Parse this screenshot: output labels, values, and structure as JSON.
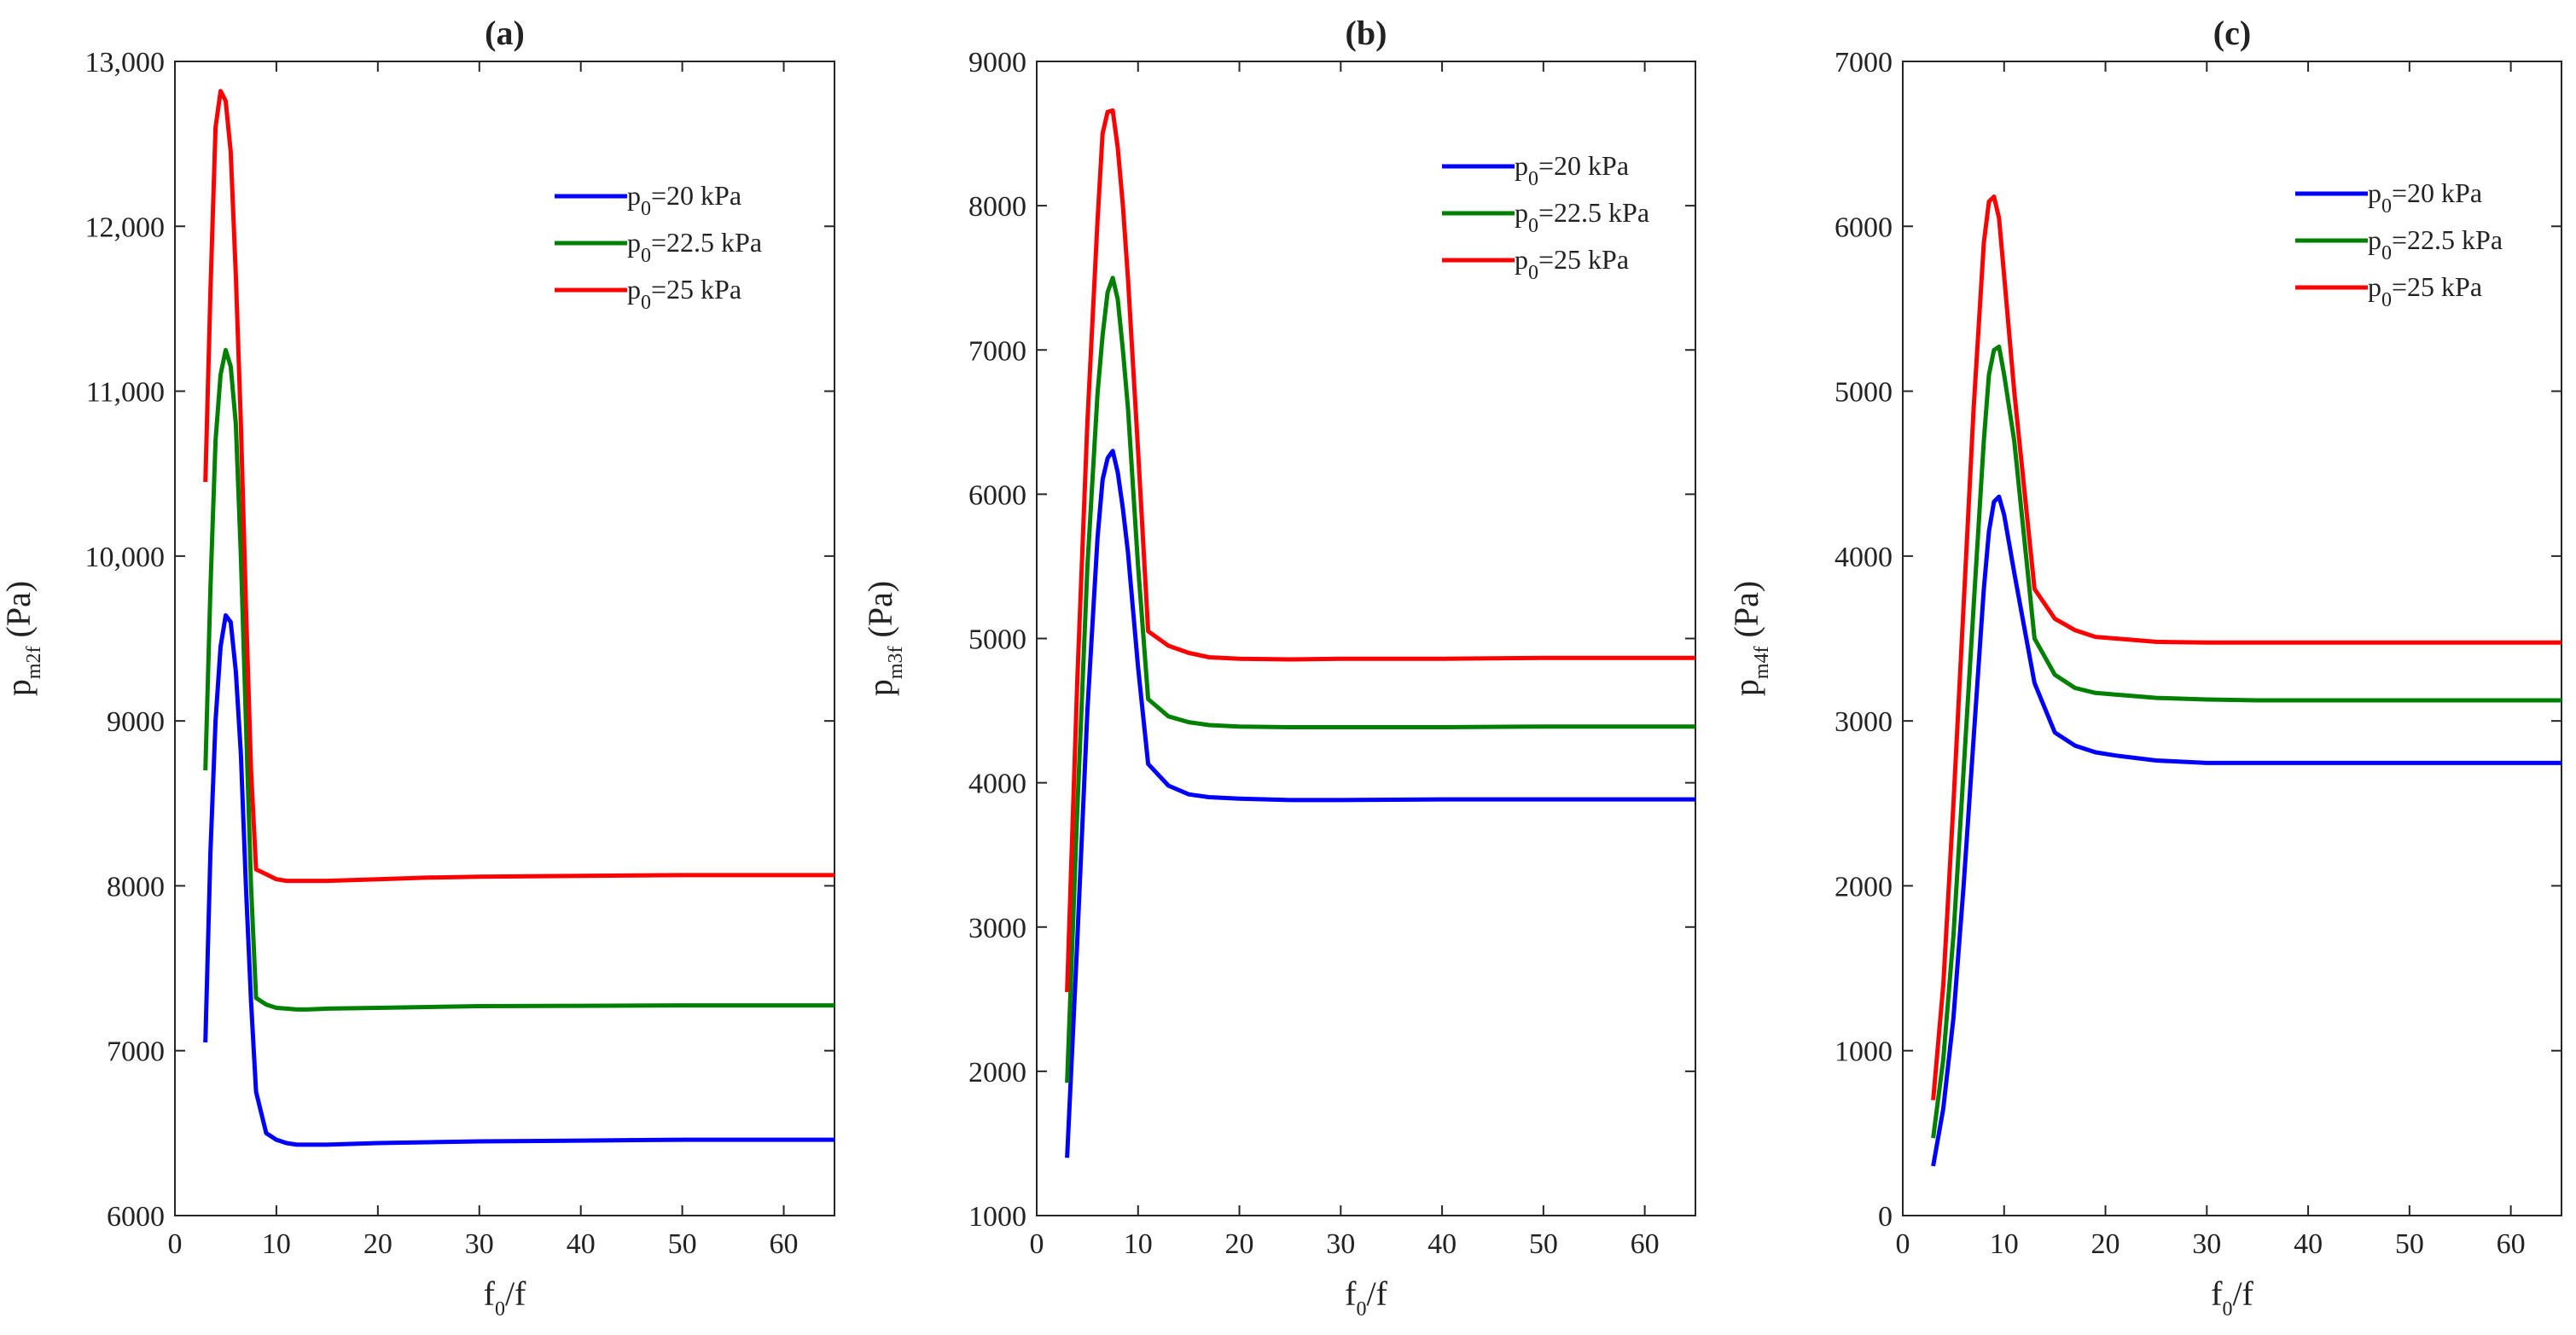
{
  "chart_data": [
    {
      "type": "line",
      "title": "(a)",
      "xlabel": {
        "base": "f",
        "sub": "0",
        "rest": "/f"
      },
      "ylabel": {
        "base": "p",
        "sub": "m2f",
        "rest": " (Pa)"
      },
      "xlim": [
        0,
        65
      ],
      "ylim": [
        6000,
        13000
      ],
      "xticks": [
        0,
        10,
        20,
        30,
        40,
        50,
        60
      ],
      "xtick_labels": [
        "0",
        "10",
        "20",
        "30",
        "40",
        "50",
        "60"
      ],
      "yticks": [
        6000,
        7000,
        8000,
        9000,
        10000,
        11000,
        12000,
        13000
      ],
      "ytick_labels": [
        "6000",
        "7000",
        "8000",
        "9000",
        "10,000",
        "11,000",
        "12,000",
        "13,000"
      ],
      "legend_position": "top-right",
      "series": [
        {
          "name": "p0=20 kPa",
          "legend": {
            "base": "p",
            "sub": "0",
            "rest": "=20 kPa"
          },
          "color": "#0000ff",
          "x": [
            3,
            3.5,
            4,
            4.5,
            5,
            5.5,
            6,
            6.5,
            7,
            7.5,
            8,
            9,
            10,
            11,
            12,
            13,
            15,
            20,
            25,
            30,
            40,
            50,
            65
          ],
          "y": [
            7050,
            8200,
            9000,
            9450,
            9640,
            9600,
            9300,
            8800,
            8000,
            7300,
            6750,
            6500,
            6460,
            6440,
            6430,
            6430,
            6430,
            6440,
            6445,
            6450,
            6455,
            6460,
            6460
          ]
        },
        {
          "name": "p0=22.5 kPa",
          "legend": {
            "base": "p",
            "sub": "0",
            "rest": "=22.5 kPa"
          },
          "color": "#008000",
          "x": [
            3,
            3.5,
            4,
            4.5,
            5,
            5.5,
            6,
            6.5,
            7,
            7.5,
            8,
            9,
            10,
            11,
            12,
            13,
            15,
            20,
            25,
            30,
            40,
            50,
            65
          ],
          "y": [
            8700,
            9800,
            10700,
            11100,
            11250,
            11150,
            10800,
            10000,
            9000,
            8000,
            7320,
            7280,
            7260,
            7255,
            7250,
            7250,
            7255,
            7260,
            7265,
            7270,
            7272,
            7275,
            7275
          ]
        },
        {
          "name": "p0=25 kPa",
          "legend": {
            "base": "p",
            "sub": "0",
            "rest": "=25 kPa"
          },
          "color": "#ff0000",
          "x": [
            3,
            3.5,
            4,
            4.5,
            5,
            5.5,
            6,
            6.5,
            7,
            7.5,
            8,
            9,
            10,
            11,
            12,
            13,
            15,
            20,
            25,
            30,
            40,
            50,
            65
          ],
          "y": [
            10450,
            11600,
            12600,
            12820,
            12760,
            12450,
            11700,
            10800,
            9700,
            8700,
            8100,
            8070,
            8040,
            8030,
            8030,
            8030,
            8030,
            8040,
            8050,
            8055,
            8060,
            8065,
            8065
          ]
        }
      ]
    },
    {
      "type": "line",
      "title": "(b)",
      "xlabel": {
        "base": "f",
        "sub": "0",
        "rest": "/f"
      },
      "ylabel": {
        "base": "p",
        "sub": "m3f",
        "rest": " (Pa)"
      },
      "xlim": [
        0,
        65
      ],
      "ylim": [
        1000,
        9000
      ],
      "xticks": [
        0,
        10,
        20,
        30,
        40,
        50,
        60
      ],
      "xtick_labels": [
        "0",
        "10",
        "20",
        "30",
        "40",
        "50",
        "60"
      ],
      "yticks": [
        1000,
        2000,
        3000,
        4000,
        5000,
        6000,
        7000,
        8000,
        9000
      ],
      "ytick_labels": [
        "1000",
        "2000",
        "3000",
        "4000",
        "5000",
        "6000",
        "7000",
        "8000",
        "9000"
      ],
      "legend_position": "top-right",
      "series": [
        {
          "name": "p0=20 kPa",
          "legend": {
            "base": "p",
            "sub": "0",
            "rest": "=20 kPa"
          },
          "color": "#0000ff",
          "x": [
            3,
            4,
            5,
            6,
            6.5,
            7,
            7.5,
            8,
            8.5,
            9,
            10,
            11,
            13,
            15,
            17,
            20,
            25,
            30,
            40,
            50,
            65
          ],
          "y": [
            1400,
            2900,
            4500,
            5700,
            6100,
            6250,
            6300,
            6150,
            5900,
            5600,
            4800,
            4130,
            3980,
            3920,
            3900,
            3890,
            3880,
            3880,
            3885,
            3885,
            3885
          ]
        },
        {
          "name": "p0=22.5 kPa",
          "legend": {
            "base": "p",
            "sub": "0",
            "rest": "=22.5 kPa"
          },
          "color": "#008000",
          "x": [
            3,
            4,
            5,
            6,
            6.5,
            7,
            7.5,
            8,
            8.5,
            9,
            10,
            11,
            13,
            15,
            17,
            20,
            25,
            30,
            40,
            50,
            65
          ],
          "y": [
            1920,
            3800,
            5500,
            6700,
            7100,
            7400,
            7500,
            7350,
            7000,
            6600,
            5500,
            4580,
            4460,
            4420,
            4400,
            4390,
            4385,
            4385,
            4385,
            4390,
            4390
          ]
        },
        {
          "name": "p0=25 kPa",
          "legend": {
            "base": "p",
            "sub": "0",
            "rest": "=25 kPa"
          },
          "color": "#ff0000",
          "x": [
            3,
            4,
            5,
            6,
            6.5,
            7,
            7.5,
            8,
            8.5,
            9,
            10,
            11,
            13,
            15,
            17,
            20,
            25,
            30,
            40,
            50,
            65
          ],
          "y": [
            2550,
            4700,
            6500,
            7900,
            8500,
            8650,
            8660,
            8400,
            8000,
            7500,
            6300,
            5050,
            4950,
            4900,
            4870,
            4860,
            4855,
            4860,
            4860,
            4865,
            4865
          ]
        }
      ]
    },
    {
      "type": "line",
      "title": "(c)",
      "xlabel": {
        "base": "f",
        "sub": "0",
        "rest": "/f"
      },
      "ylabel": {
        "base": "p",
        "sub": "m4f",
        "rest": " (Pa)"
      },
      "xlim": [
        0,
        65
      ],
      "ylim": [
        0,
        7000
      ],
      "xticks": [
        0,
        10,
        20,
        30,
        40,
        50,
        60
      ],
      "xtick_labels": [
        "0",
        "10",
        "20",
        "30",
        "40",
        "50",
        "60"
      ],
      "yticks": [
        0,
        1000,
        2000,
        3000,
        4000,
        5000,
        6000,
        7000
      ],
      "ytick_labels": [
        "0",
        "1000",
        "2000",
        "3000",
        "4000",
        "5000",
        "6000",
        "7000"
      ],
      "legend_position": "top-right",
      "series": [
        {
          "name": "p0=20 kPa",
          "legend": {
            "base": "p",
            "sub": "0",
            "rest": "=20 kPa"
          },
          "color": "#0000ff",
          "x": [
            3,
            4,
            5,
            6,
            7,
            8,
            8.5,
            9,
            9.5,
            10,
            11,
            13,
            15,
            17,
            19,
            21,
            25,
            30,
            35,
            40,
            50,
            65
          ],
          "y": [
            300,
            650,
            1200,
            2000,
            2900,
            3800,
            4150,
            4330,
            4360,
            4250,
            3900,
            3230,
            2930,
            2850,
            2810,
            2790,
            2760,
            2745,
            2745,
            2745,
            2745,
            2745
          ]
        },
        {
          "name": "p0=22.5 kPa",
          "legend": {
            "base": "p",
            "sub": "0",
            "rest": "=22.5 kPa"
          },
          "color": "#008000",
          "x": [
            3,
            4,
            5,
            6,
            7,
            8,
            8.5,
            9,
            9.5,
            10,
            11,
            13,
            15,
            17,
            19,
            21,
            25,
            30,
            35,
            40,
            50,
            65
          ],
          "y": [
            470,
            950,
            1700,
            2700,
            3700,
            4700,
            5100,
            5250,
            5270,
            5100,
            4700,
            3500,
            3280,
            3200,
            3170,
            3160,
            3140,
            3130,
            3125,
            3125,
            3125,
            3125
          ]
        },
        {
          "name": "p0=25 kPa",
          "legend": {
            "base": "p",
            "sub": "0",
            "rest": "=25 kPa"
          },
          "color": "#ff0000",
          "x": [
            3,
            4,
            5,
            6,
            7,
            8,
            8.5,
            9,
            9.5,
            10,
            11,
            13,
            15,
            17,
            19,
            21,
            25,
            30,
            35,
            40,
            50,
            65
          ],
          "y": [
            700,
            1400,
            2500,
            3700,
            4900,
            5900,
            6150,
            6180,
            6050,
            5700,
            5000,
            3800,
            3620,
            3550,
            3510,
            3500,
            3480,
            3475,
            3475,
            3475,
            3475,
            3475
          ]
        }
      ]
    }
  ]
}
